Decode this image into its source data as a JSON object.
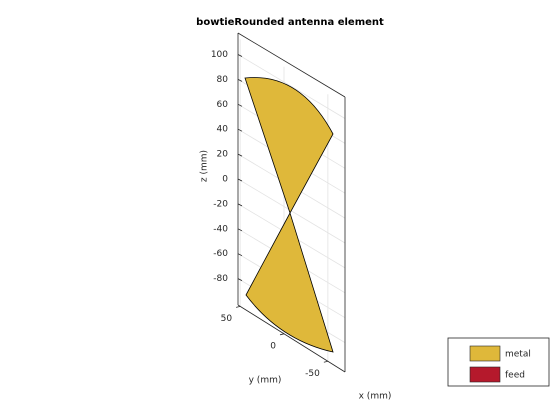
{
  "chart_data": {
    "type": "geometry-3d",
    "title": "bowtieRounded antenna element",
    "zlabel": "z (mm)",
    "ylabel": "y (mm)",
    "xlabel": "x (mm)",
    "zticks": [
      -80,
      -60,
      -40,
      -20,
      0,
      20,
      40,
      60,
      80,
      100
    ],
    "yticks": [
      50,
      0,
      -50
    ],
    "grid": true,
    "legend": [
      {
        "name": "metal",
        "color": "#dfb83a"
      },
      {
        "name": "feed",
        "color": "#b5192c"
      }
    ]
  }
}
